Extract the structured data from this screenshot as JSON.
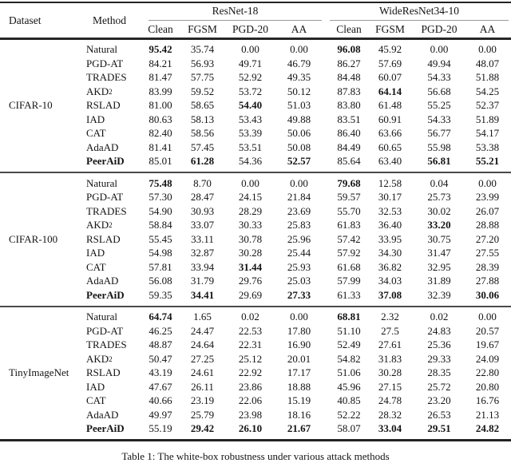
{
  "table": {
    "header": {
      "dataset": "Dataset",
      "method": "Method"
    },
    "groups": [
      "ResNet-18",
      "WideResNet34-10"
    ],
    "sub_cols": [
      "Clean",
      "FGSM",
      "PGD-20",
      "AA"
    ],
    "rule_colors": {
      "dark": "#222222",
      "mid": "#4a4a4a",
      "light": "#999999"
    },
    "blocks": [
      {
        "dataset": "CIFAR-10",
        "rows": [
          {
            "method": "Natural",
            "values": [
              "95.42",
              "35.74",
              "0.00",
              "0.00",
              "96.08",
              "45.92",
              "0.00",
              "0.00"
            ],
            "bold": [
              0,
              4
            ]
          },
          {
            "method": "PGD-AT",
            "values": [
              "84.21",
              "56.93",
              "49.71",
              "46.79",
              "86.27",
              "57.69",
              "49.94",
              "48.07"
            ],
            "bold": []
          },
          {
            "method": "TRADES",
            "values": [
              "81.47",
              "57.75",
              "52.92",
              "49.35",
              "84.48",
              "60.07",
              "54.33",
              "51.88"
            ],
            "bold": []
          },
          {
            "method": "AKD",
            "sup": "2",
            "values": [
              "83.99",
              "59.52",
              "53.72",
              "50.12",
              "87.83",
              "64.14",
              "56.68",
              "54.25"
            ],
            "bold": [
              5
            ]
          },
          {
            "method": "RSLAD",
            "values": [
              "81.00",
              "58.65",
              "54.40",
              "51.03",
              "83.80",
              "61.48",
              "55.25",
              "52.37"
            ],
            "bold": [
              2
            ]
          },
          {
            "method": "IAD",
            "values": [
              "80.63",
              "58.13",
              "53.43",
              "49.88",
              "83.51",
              "60.91",
              "54.33",
              "51.89"
            ],
            "bold": []
          },
          {
            "method": "CAT",
            "values": [
              "82.40",
              "58.56",
              "53.39",
              "50.06",
              "86.40",
              "63.66",
              "56.77",
              "54.17"
            ],
            "bold": []
          },
          {
            "method": "AdaAD",
            "values": [
              "81.41",
              "57.45",
              "53.51",
              "50.08",
              "84.49",
              "60.65",
              "55.98",
              "53.38"
            ],
            "bold": []
          },
          {
            "method": "PeerAiD",
            "bold_method": true,
            "values": [
              "85.01",
              "61.28",
              "54.36",
              "52.57",
              "85.64",
              "63.40",
              "56.81",
              "55.21"
            ],
            "bold": [
              1,
              3,
              6,
              7
            ]
          }
        ]
      },
      {
        "dataset": "CIFAR-100",
        "rows": [
          {
            "method": "Natural",
            "values": [
              "75.48",
              "8.70",
              "0.00",
              "0.00",
              "79.68",
              "12.58",
              "0.04",
              "0.00"
            ],
            "bold": [
              0,
              4
            ]
          },
          {
            "method": "PGD-AT",
            "values": [
              "57.30",
              "28.47",
              "24.15",
              "21.84",
              "59.57",
              "30.17",
              "25.73",
              "23.99"
            ],
            "bold": []
          },
          {
            "method": "TRADES",
            "values": [
              "54.90",
              "30.93",
              "28.29",
              "23.69",
              "55.70",
              "32.53",
              "30.02",
              "26.07"
            ],
            "bold": []
          },
          {
            "method": "AKD",
            "sup": "2",
            "values": [
              "58.84",
              "33.07",
              "30.33",
              "25.83",
              "61.83",
              "36.40",
              "33.20",
              "28.88"
            ],
            "bold": [
              6
            ]
          },
          {
            "method": "RSLAD",
            "values": [
              "55.45",
              "33.11",
              "30.78",
              "25.96",
              "57.42",
              "33.95",
              "30.75",
              "27.20"
            ],
            "bold": []
          },
          {
            "method": "IAD",
            "values": [
              "54.98",
              "32.87",
              "30.28",
              "25.44",
              "57.92",
              "34.30",
              "31.47",
              "27.55"
            ],
            "bold": []
          },
          {
            "method": "CAT",
            "values": [
              "57.81",
              "33.94",
              "31.44",
              "25.93",
              "61.68",
              "36.82",
              "32.95",
              "28.39"
            ],
            "bold": [
              2
            ]
          },
          {
            "method": "AdaAD",
            "values": [
              "56.08",
              "31.79",
              "29.76",
              "25.03",
              "57.99",
              "34.03",
              "31.89",
              "27.88"
            ],
            "bold": []
          },
          {
            "method": "PeerAiD",
            "bold_method": true,
            "values": [
              "59.35",
              "34.41",
              "29.69",
              "27.33",
              "61.33",
              "37.08",
              "32.39",
              "30.06"
            ],
            "bold": [
              1,
              3,
              5,
              7
            ]
          }
        ]
      },
      {
        "dataset": "TinyImageNet",
        "rows": [
          {
            "method": "Natural",
            "values": [
              "64.74",
              "1.65",
              "0.02",
              "0.00",
              "68.81",
              "2.32",
              "0.02",
              "0.00"
            ],
            "bold": [
              0,
              4
            ]
          },
          {
            "method": "PGD-AT",
            "values": [
              "46.25",
              "24.47",
              "22.53",
              "17.80",
              "51.10",
              "27.5",
              "24.83",
              "20.57"
            ],
            "bold": []
          },
          {
            "method": "TRADES",
            "values": [
              "48.87",
              "24.64",
              "22.31",
              "16.90",
              "52.49",
              "27.61",
              "25.36",
              "19.67"
            ],
            "bold": []
          },
          {
            "method": "AKD",
            "sup": "2",
            "values": [
              "50.47",
              "27.25",
              "25.12",
              "20.01",
              "54.82",
              "31.83",
              "29.33",
              "24.09"
            ],
            "bold": []
          },
          {
            "method": "RSLAD",
            "values": [
              "43.19",
              "24.61",
              "22.92",
              "17.17",
              "51.06",
              "30.28",
              "28.35",
              "22.80"
            ],
            "bold": []
          },
          {
            "method": "IAD",
            "values": [
              "47.67",
              "26.11",
              "23.86",
              "18.88",
              "45.96",
              "27.15",
              "25.72",
              "20.80"
            ],
            "bold": []
          },
          {
            "method": "CAT",
            "values": [
              "40.66",
              "23.19",
              "22.06",
              "15.19",
              "40.85",
              "24.78",
              "23.20",
              "16.76"
            ],
            "bold": []
          },
          {
            "method": "AdaAD",
            "values": [
              "49.97",
              "25.79",
              "23.98",
              "18.16",
              "52.22",
              "28.32",
              "26.53",
              "21.13"
            ],
            "bold": []
          },
          {
            "method": "PeerAiD",
            "bold_method": true,
            "values": [
              "55.19",
              "29.42",
              "26.10",
              "21.67",
              "58.07",
              "33.04",
              "29.51",
              "24.82"
            ],
            "bold": [
              1,
              2,
              3,
              5,
              6,
              7
            ]
          }
        ]
      }
    ]
  },
  "caption": "Table 1: The white-box robustness under various attack methods"
}
